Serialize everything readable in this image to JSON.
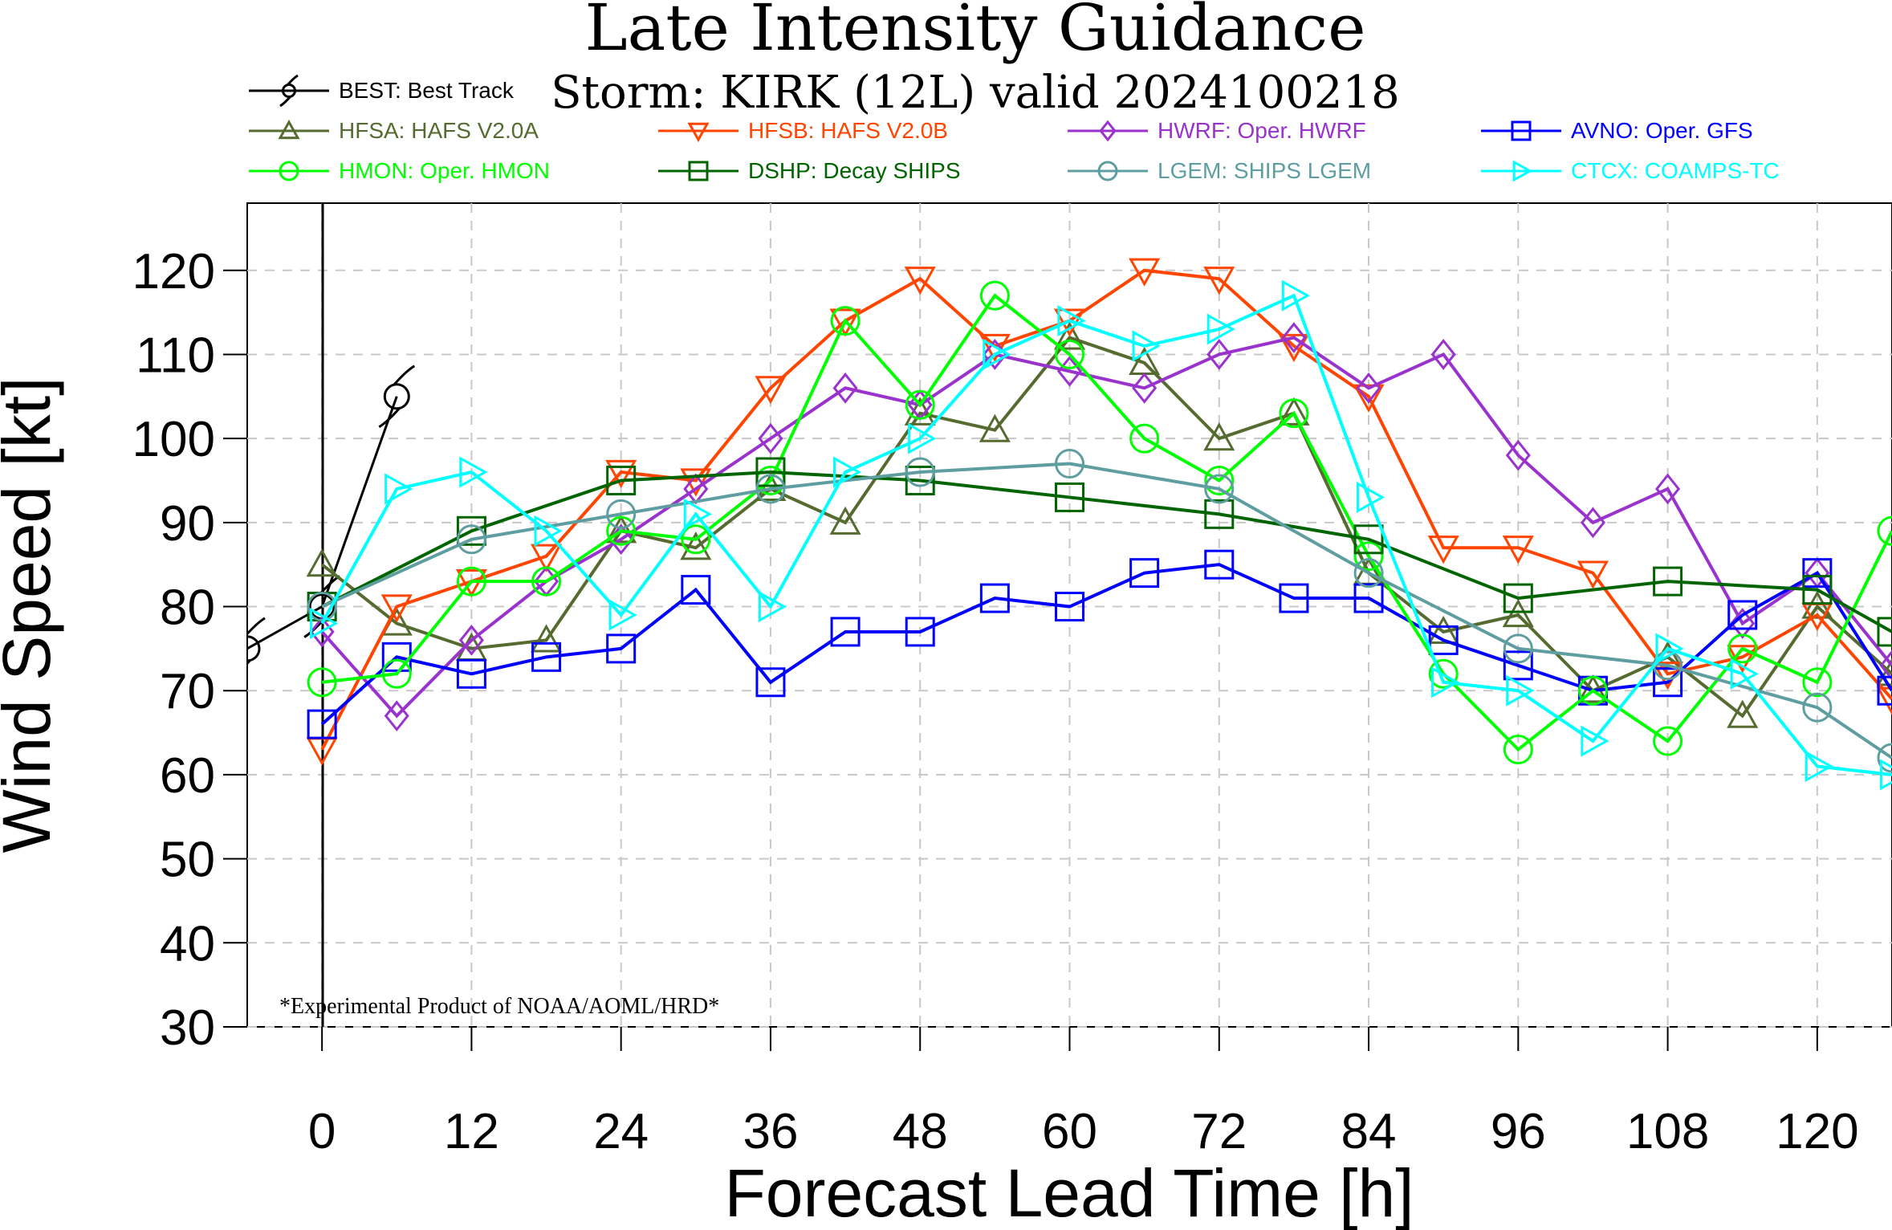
{
  "chart_data": {
    "type": "line",
    "title": "Late Intensity Guidance",
    "subtitle": "Storm: KIRK (12L) valid 2024100218",
    "xlabel": "Forecast Lead Time [h]",
    "ylabel": "Wind Speed [kt]",
    "xlim": [
      -6,
      126
    ],
    "ylim": [
      30,
      128
    ],
    "xticks": [
      0,
      12,
      24,
      36,
      48,
      60,
      72,
      84,
      96,
      108,
      120
    ],
    "yticks": [
      30,
      40,
      50,
      60,
      70,
      80,
      90,
      100,
      110,
      120
    ],
    "grid": true,
    "legend_position": "top",
    "note": "*Experimental Product of NOAA/AOML/HRD*",
    "series": [
      {
        "name": "BEST: Best Track",
        "color": "#000000",
        "marker": "hurricane",
        "line_only": false,
        "x": [
          -6,
          0,
          6
        ],
        "y": [
          75,
          80,
          105
        ]
      },
      {
        "name": "HFSA: HAFS V2.0A",
        "color": "#556b2f",
        "marker": "triangle",
        "x": [
          0,
          6,
          12,
          18,
          24,
          30,
          36,
          42,
          48,
          54,
          60,
          66,
          72,
          78,
          84,
          90,
          96,
          102,
          108,
          114,
          120,
          126
        ],
        "y": [
          85,
          78,
          75,
          76,
          89,
          87,
          94,
          90,
          103,
          101,
          112,
          109,
          100,
          103,
          84,
          77,
          79,
          70,
          74,
          67,
          80,
          72
        ]
      },
      {
        "name": "HFSB: HAFS V2.0B",
        "color": "#ff4500",
        "marker": "triangle-down",
        "x": [
          0,
          6,
          12,
          18,
          24,
          30,
          36,
          42,
          48,
          54,
          60,
          66,
          72,
          78,
          84,
          90,
          96,
          102,
          108,
          114,
          120,
          126
        ],
        "y": [
          63,
          80,
          83,
          86,
          96,
          95,
          106,
          114,
          119,
          111,
          114,
          120,
          119,
          111,
          105,
          87,
          87,
          84,
          72,
          74,
          79,
          69
        ]
      },
      {
        "name": "HWRF: Oper. HWRF",
        "color": "#9a32cd",
        "marker": "diamond",
        "x": [
          0,
          6,
          12,
          18,
          24,
          30,
          36,
          42,
          48,
          54,
          60,
          66,
          72,
          78,
          84,
          90,
          96,
          102,
          108,
          114,
          120,
          126
        ],
        "y": [
          77,
          67,
          76,
          83,
          88,
          94,
          100,
          106,
          104,
          110,
          108,
          106,
          110,
          112,
          106,
          110,
          98,
          90,
          94,
          78,
          84,
          73
        ]
      },
      {
        "name": "AVNO: Oper. GFS",
        "color": "#0000ff",
        "marker": "square",
        "x": [
          0,
          6,
          12,
          18,
          24,
          30,
          36,
          42,
          48,
          54,
          60,
          66,
          72,
          78,
          84,
          90,
          96,
          102,
          108,
          114,
          120,
          126
        ],
        "y": [
          66,
          74,
          72,
          74,
          75,
          82,
          71,
          77,
          77,
          81,
          80,
          84,
          85,
          81,
          81,
          76,
          73,
          70,
          71,
          79,
          84,
          70
        ]
      },
      {
        "name": "HMON: Oper. HMON",
        "color": "#00ff00",
        "marker": "circle",
        "x": [
          0,
          6,
          12,
          18,
          24,
          30,
          36,
          42,
          48,
          54,
          60,
          66,
          72,
          78,
          84,
          90,
          96,
          102,
          108,
          114,
          120,
          126
        ],
        "y": [
          71,
          72,
          83,
          83,
          89,
          88,
          95,
          114,
          104,
          117,
          110,
          100,
          95,
          103,
          86,
          72,
          63,
          70,
          64,
          75,
          71,
          89
        ]
      },
      {
        "name": "DSHP: Decay SHIPS",
        "color": "#006400",
        "marker": "square",
        "x": [
          0,
          12,
          24,
          36,
          48,
          60,
          72,
          84,
          96,
          108,
          120,
          126
        ],
        "y": [
          80,
          89,
          95,
          96,
          95,
          93,
          91,
          88,
          81,
          83,
          82,
          77
        ]
      },
      {
        "name": "LGEM: SHIPS LGEM",
        "color": "#5f9ea0",
        "marker": "circle",
        "x": [
          0,
          12,
          24,
          36,
          48,
          60,
          72,
          84,
          96,
          108,
          120,
          126
        ],
        "y": [
          80,
          88,
          91,
          94,
          96,
          97,
          94,
          84,
          75,
          73,
          68,
          62
        ]
      },
      {
        "name": "CTCX: COAMPS-TC",
        "color": "#00ffff",
        "marker": "triangle-right",
        "x": [
          0,
          6,
          12,
          18,
          24,
          30,
          36,
          42,
          48,
          54,
          60,
          66,
          72,
          78,
          84,
          90,
          96,
          102,
          108,
          114,
          120,
          126
        ],
        "y": [
          78,
          94,
          96,
          89,
          79,
          91,
          80,
          96,
          100,
          110,
          114,
          111,
          113,
          117,
          93,
          71,
          70,
          64,
          75,
          72,
          61,
          60
        ]
      }
    ]
  }
}
